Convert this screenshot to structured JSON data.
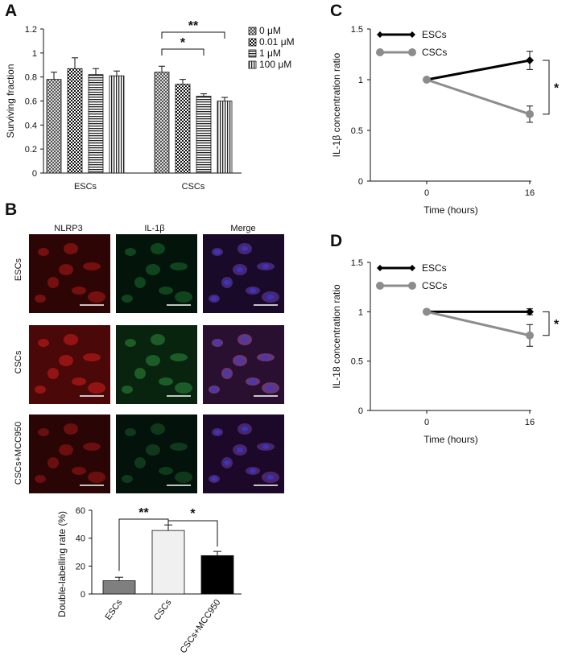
{
  "panels": {
    "a": "A",
    "b": "B",
    "c": "C",
    "d": "D"
  },
  "chart_data": [
    {
      "panel": "A",
      "type": "bar",
      "ylabel": "Surviving fraction",
      "ylim": [
        0,
        1.2
      ],
      "yticks": [
        "0",
        "0.2",
        "0.4",
        "0.6",
        "0.8",
        "1",
        "1.2"
      ],
      "groups": [
        "ESCs",
        "CSCs"
      ],
      "series": [
        {
          "name": "0 μM",
          "pattern": "cross-hatch",
          "values": [
            0.78,
            0.84
          ],
          "errors": [
            0.06,
            0.05
          ]
        },
        {
          "name": "0.01 μM",
          "pattern": "checker",
          "values": [
            0.87,
            0.74
          ],
          "errors": [
            0.09,
            0.04
          ]
        },
        {
          "name": "1 μM",
          "pattern": "horizontal",
          "values": [
            0.82,
            0.64
          ],
          "errors": [
            0.05,
            0.02
          ]
        },
        {
          "name": "100 μM",
          "pattern": "vertical",
          "values": [
            0.81,
            0.6
          ],
          "errors": [
            0.04,
            0.03
          ]
        }
      ],
      "significance": [
        {
          "from": "0 μM",
          "to": "1 μM",
          "group": "CSCs",
          "label": "*"
        },
        {
          "from": "0 μM",
          "to": "100 μM",
          "group": "CSCs",
          "label": "**"
        }
      ]
    },
    {
      "panel": "B",
      "type": "bar",
      "ylabel": "Double-labelling rate (%)",
      "ylim": [
        0,
        60
      ],
      "yticks": [
        "0",
        "20",
        "40",
        "60"
      ],
      "categories": [
        "ESCs",
        "CSCs",
        "CSCs+MCC950"
      ],
      "values": [
        9.5,
        45.5,
        27.5
      ],
      "errors": [
        2.5,
        4.0,
        3.0
      ],
      "colors": [
        "#7f7f7f",
        "#f0f0f0",
        "#000000"
      ],
      "significance": [
        {
          "from": "ESCs",
          "to": "CSCs",
          "label": "**"
        },
        {
          "from": "CSCs",
          "to": "CSCs+MCC950",
          "label": "*"
        }
      ]
    },
    {
      "panel": "C",
      "type": "line",
      "ylabel": "IL-1β concentration ratio",
      "xlabel": "Time (hours)",
      "x": [
        0,
        16
      ],
      "xticks": [
        "0",
        "16"
      ],
      "ylim": [
        0,
        1.5
      ],
      "yticks": [
        "0",
        "0.5",
        "1",
        "1.5"
      ],
      "series": [
        {
          "name": "ESCs",
          "color": "#000000",
          "marker": "diamond",
          "values": [
            1.0,
            1.19
          ],
          "errors": [
            0,
            0.09
          ]
        },
        {
          "name": "CSCs",
          "color": "#8c8c8c",
          "marker": "circle",
          "values": [
            1.0,
            0.66
          ],
          "errors": [
            0,
            0.08
          ]
        }
      ],
      "significance": [
        {
          "label": "*"
        }
      ]
    },
    {
      "panel": "D",
      "type": "line",
      "ylabel": "IL-18 concentration ratio",
      "xlabel": "Time (hours)",
      "x": [
        0,
        16
      ],
      "xticks": [
        "0",
        "16"
      ],
      "ylim": [
        0,
        1.5
      ],
      "yticks": [
        "0",
        "0.5",
        "1",
        "1.5"
      ],
      "series": [
        {
          "name": "ESCs",
          "color": "#000000",
          "marker": "diamond",
          "values": [
            1.0,
            1.0
          ],
          "errors": [
            0,
            0.03
          ]
        },
        {
          "name": "CSCs",
          "color": "#8c8c8c",
          "marker": "circle",
          "values": [
            1.0,
            0.76
          ],
          "errors": [
            0,
            0.11
          ]
        }
      ],
      "significance": [
        {
          "label": "*"
        }
      ]
    }
  ],
  "micrographs": {
    "columns": [
      "NLRP3",
      "IL-1β",
      "Merge"
    ],
    "rows": [
      "ESCs",
      "CSCs",
      "CSCs+MCC950"
    ]
  }
}
